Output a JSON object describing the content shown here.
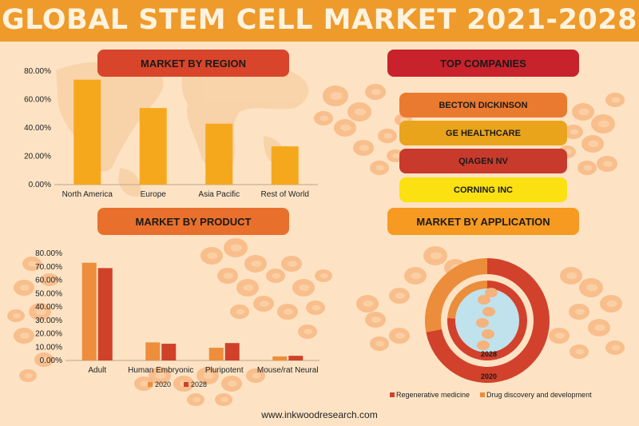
{
  "title": "GLOBAL STEM CELL MARKET 2021-2028",
  "footer": "www.inkwoodresearch.com",
  "colors": {
    "band": "#ee9b2b",
    "background": "#fde3c4",
    "region_bar": "#f6a81d",
    "series_2020": "#ee8d3b",
    "series_2028": "#cf4128",
    "regenerative": "#d2412c",
    "drug_discovery": "#ec8d3b"
  },
  "sections": {
    "region": "MARKET BY REGION",
    "companies": "TOP COMPANIES",
    "product": "MARKET BY PRODUCT",
    "application": "MARKET BY APPLICATION"
  },
  "companies": [
    {
      "name": "BECTON DICKINSON",
      "color": "#ea7a30"
    },
    {
      "name": "GE HEALTHCARE",
      "color": "#e9a41c"
    },
    {
      "name": "QIAGEN NV",
      "color": "#c83a2c"
    },
    {
      "name": "CORNING INC",
      "color": "#fbe012"
    }
  ],
  "chart_data": [
    {
      "type": "bar",
      "title": "MARKET BY REGION",
      "categories": [
        "North America",
        "Europe",
        "Asia Pacific",
        "Rest of World"
      ],
      "values": [
        74,
        54,
        43,
        27
      ],
      "ylim": [
        0,
        80
      ],
      "yticks": [
        0,
        20,
        40,
        60,
        80
      ],
      "ytick_labels": [
        "0.00%",
        "20.00%",
        "40.00%",
        "60.00%",
        "80.00%"
      ]
    },
    {
      "type": "bar",
      "title": "MARKET BY PRODUCT",
      "categories": [
        "Adult",
        "Human Embryonic",
        "Pluripotent",
        "Mouse/rat Neural"
      ],
      "series": [
        {
          "name": "2020",
          "values": [
            73,
            13.5,
            9.5,
            3
          ]
        },
        {
          "name": "2028",
          "values": [
            69,
            12.5,
            13,
            3.5
          ]
        }
      ],
      "ylim": [
        0,
        80
      ],
      "yticks": [
        0,
        10,
        20,
        30,
        40,
        50,
        60,
        70,
        80
      ],
      "ytick_labels": [
        "0.00%",
        "10.00%",
        "20.00%",
        "30.00%",
        "40.00%",
        "50.00%",
        "60.00%",
        "70.00%",
        "80.00%"
      ],
      "legend": "bottom"
    },
    {
      "type": "pie",
      "subtype": "nested-donut",
      "title": "MARKET BY APPLICATION",
      "series_names": [
        "Regenerative medicine",
        "Drug discovery and development"
      ],
      "rings": [
        {
          "label": "2020",
          "values": [
            72,
            28
          ]
        },
        {
          "label": "2028",
          "values": [
            76,
            24
          ]
        }
      ],
      "legend": "bottom"
    }
  ]
}
